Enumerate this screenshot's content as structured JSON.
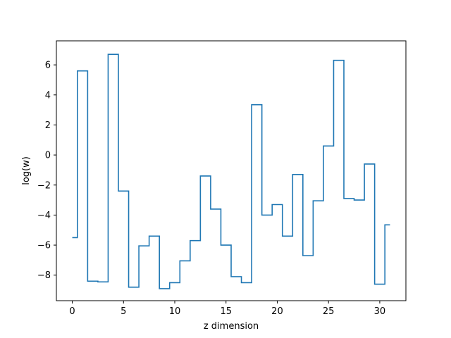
{
  "chart_data": {
    "type": "line",
    "drawstyle": "steps-mid",
    "title": "",
    "xlabel": "z dimension",
    "ylabel": "log(w)",
    "xlim": [
      -1.55,
      32.55
    ],
    "ylim": [
      -9.7,
      7.6
    ],
    "xticks": [
      0,
      5,
      10,
      15,
      20,
      25,
      30
    ],
    "xtick_labels": [
      "0",
      "5",
      "10",
      "15",
      "20",
      "25",
      "30"
    ],
    "yticks": [
      -8,
      -6,
      -4,
      -2,
      0,
      2,
      4,
      6
    ],
    "ytick_labels": [
      "−8",
      "−6",
      "−4",
      "−2",
      "0",
      "2",
      "4",
      "6"
    ],
    "grid": false,
    "color": "#1f77b4",
    "series": [
      {
        "x": [
          0,
          1,
          2,
          3,
          4,
          5,
          6,
          7,
          8,
          9,
          10,
          11,
          12,
          13,
          14,
          15,
          16,
          17,
          18,
          19,
          20,
          21,
          22,
          23,
          24,
          25,
          26,
          27,
          28,
          29,
          30,
          31
        ],
        "values": [
          -5.5,
          5.6,
          -8.4,
          -8.45,
          6.7,
          -2.4,
          -8.8,
          -6.05,
          -5.4,
          -8.9,
          -8.5,
          -7.05,
          -5.7,
          -1.4,
          -3.6,
          -6.0,
          -8.1,
          -8.5,
          3.35,
          -4.0,
          -3.3,
          -5.4,
          -1.3,
          -6.7,
          -3.05,
          0.6,
          6.3,
          -2.9,
          -3.0,
          -0.6,
          -8.6,
          -4.65
        ]
      }
    ]
  }
}
